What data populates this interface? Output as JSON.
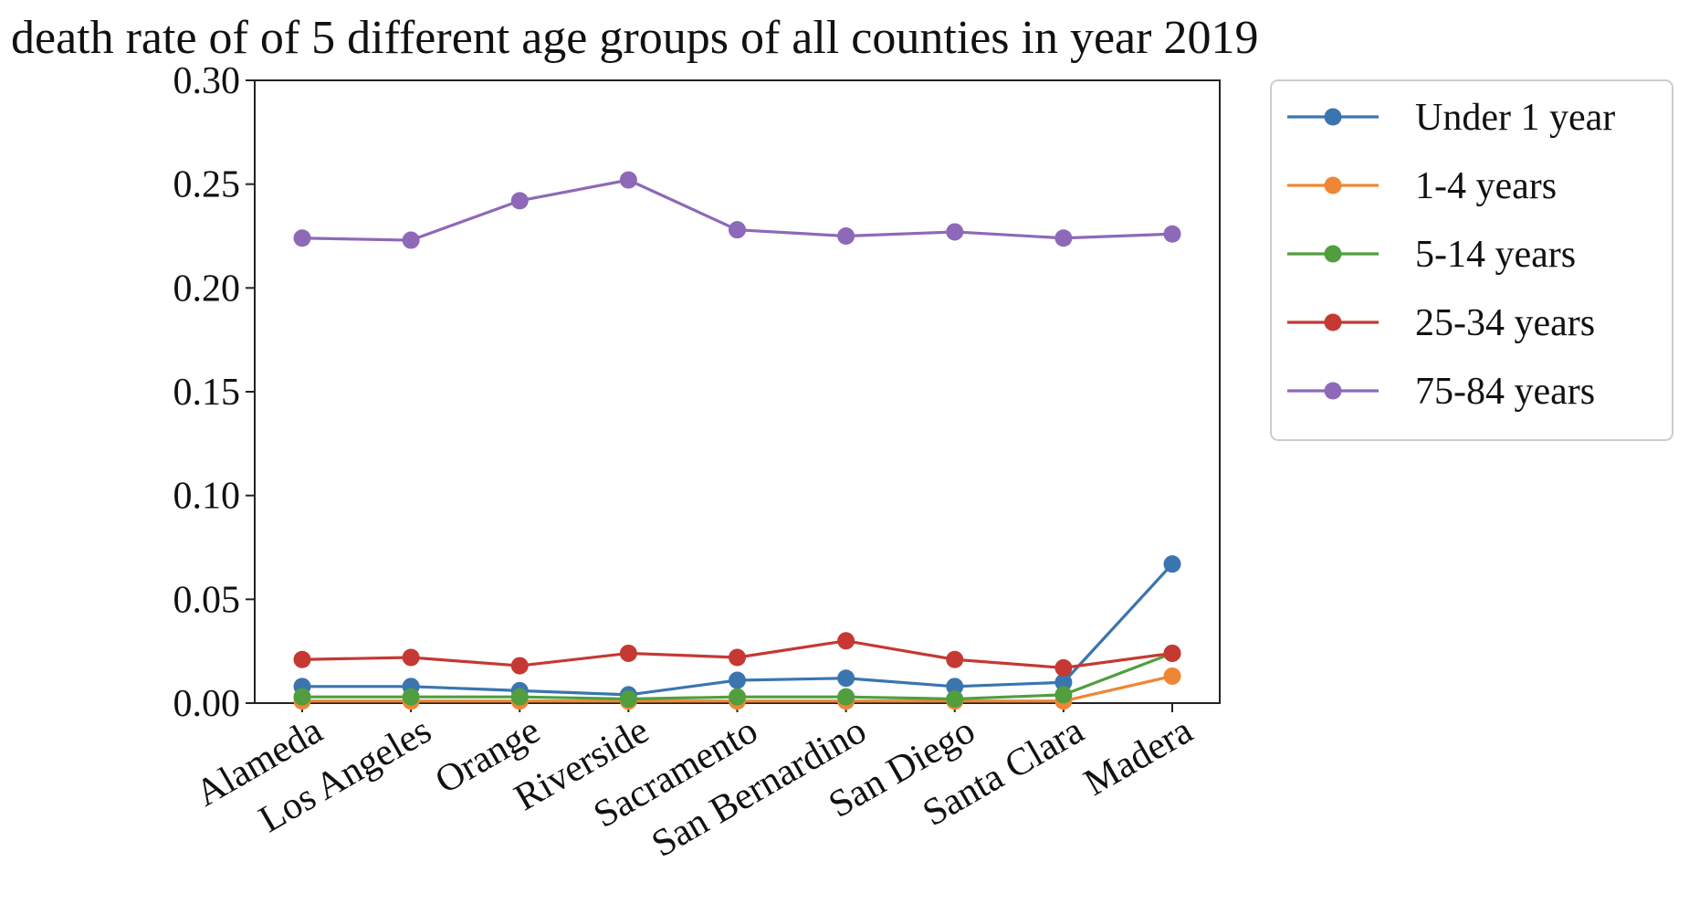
{
  "chart_data": {
    "type": "line",
    "title": "death rate of of 5 different age groups of all counties in year 2019",
    "xlabel": "",
    "ylabel": "",
    "categories": [
      "Alameda",
      "Los Angeles",
      "Orange",
      "Riverside",
      "Sacramento",
      "San Bernardino",
      "San Diego",
      "Santa Clara",
      "Madera"
    ],
    "ylim": [
      0,
      0.3
    ],
    "yticks": [
      "0.00",
      "0.05",
      "0.10",
      "0.15",
      "0.20",
      "0.25",
      "0.30"
    ],
    "ytick_values": [
      0,
      0.05,
      0.1,
      0.15,
      0.2,
      0.25,
      0.3
    ],
    "grid": false,
    "legend_position": "outside-right",
    "series": [
      {
        "name": "Under 1 year",
        "color": "#3b75af",
        "values": [
          0.008,
          0.008,
          0.006,
          0.004,
          0.011,
          0.012,
          0.008,
          0.01,
          0.067
        ]
      },
      {
        "name": "1-4 years",
        "color": "#ef8636",
        "values": [
          0.001,
          0.001,
          0.001,
          0.001,
          0.001,
          0.001,
          0.001,
          0.001,
          0.013
        ]
      },
      {
        "name": "5-14 years",
        "color": "#519e3e",
        "values": [
          0.003,
          0.003,
          0.003,
          0.002,
          0.003,
          0.003,
          0.002,
          0.004,
          0.024
        ]
      },
      {
        "name": "25-34 years",
        "color": "#c53932",
        "values": [
          0.021,
          0.022,
          0.018,
          0.024,
          0.022,
          0.03,
          0.021,
          0.017,
          0.024
        ]
      },
      {
        "name": "75-84 years",
        "color": "#8d69b8",
        "values": [
          0.224,
          0.223,
          0.242,
          0.252,
          0.228,
          0.225,
          0.227,
          0.224,
          0.226
        ]
      }
    ]
  }
}
